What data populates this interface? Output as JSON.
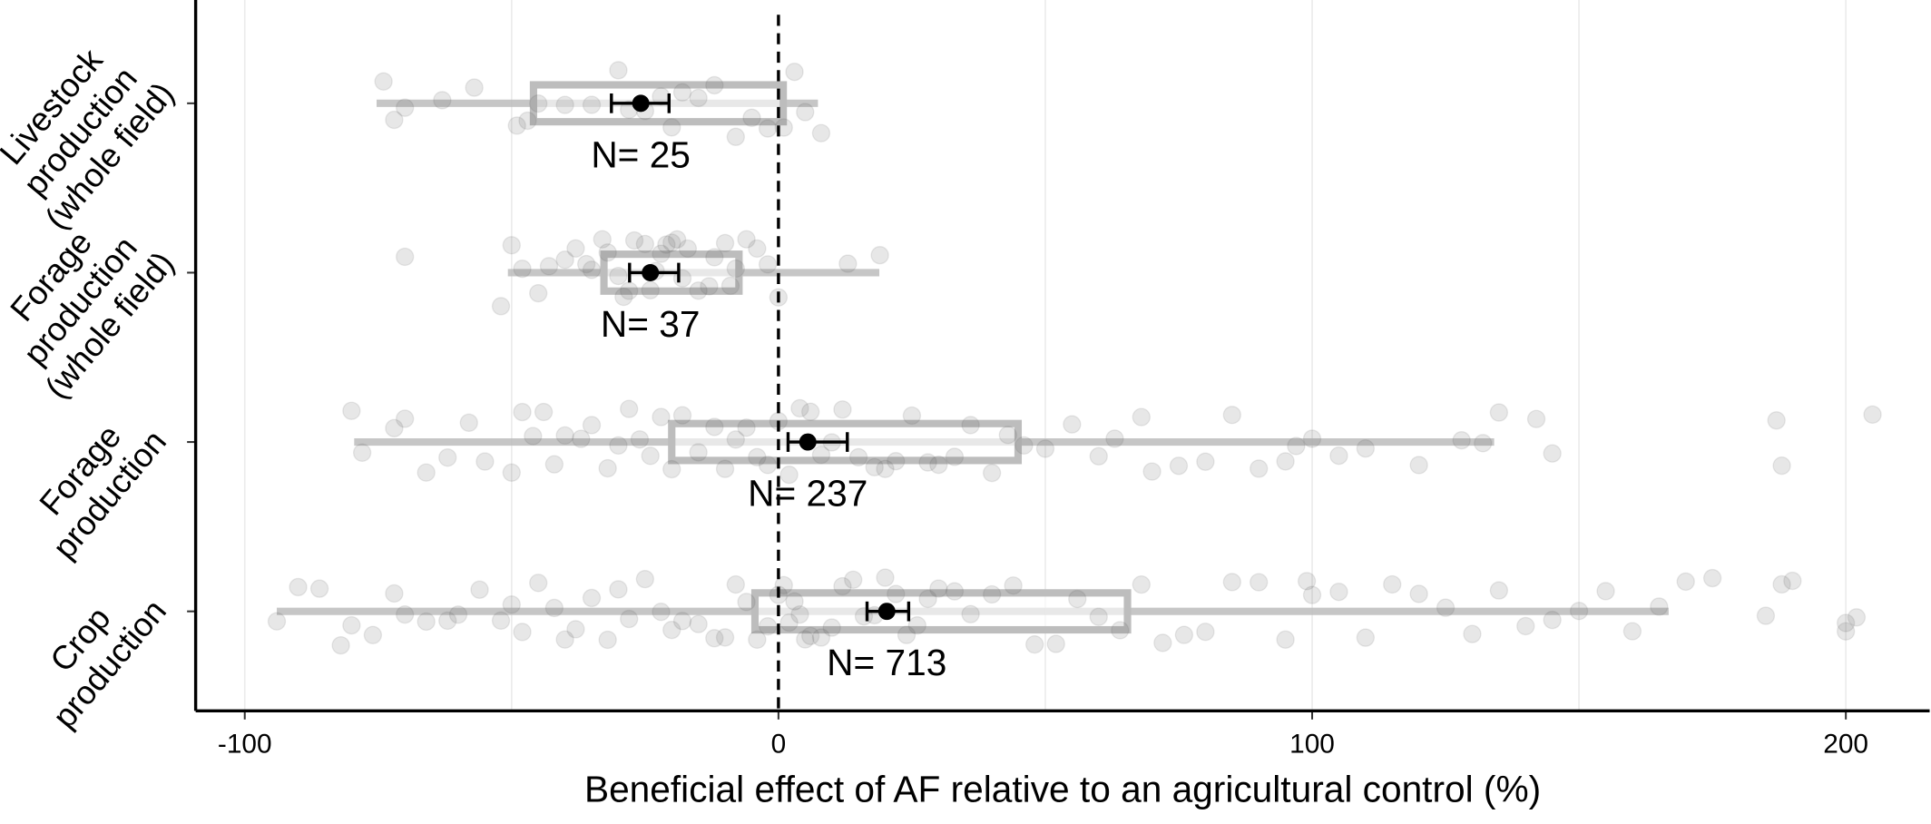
{
  "chart_data": {
    "type": "boxplot",
    "xlabel": "Beneficial effect of AF relative to an agricultural control (%)",
    "xlim": [
      -109.2,
      215.7
    ],
    "xticks": [
      -100,
      0,
      100,
      200
    ],
    "minor_grid": [
      -50,
      50,
      150
    ],
    "reference_line": 0,
    "box_color": "#bdbdbd",
    "point_color": "#555555",
    "mean_color": "#000000",
    "categories": [
      [
        "Livestock",
        "production",
        "(whole field)"
      ],
      [
        "Forage",
        "production",
        "(whole field)"
      ],
      [
        "Forage",
        "production"
      ],
      [
        "Crop",
        "production"
      ]
    ],
    "boxes": [
      {
        "whisker": [
          -75.3,
          7.4
        ],
        "box": [
          -45.9,
          0.9
        ],
        "mean": -25.8,
        "mean_ci": [
          -31.3,
          -20.5
        ],
        "label": "N= 25",
        "points": [
          -74,
          -72,
          -70,
          -63,
          -57,
          -49,
          -47,
          -45,
          -40,
          -35,
          -30,
          -28,
          -25,
          -22,
          -20,
          -18,
          -15,
          -12,
          -8,
          -5,
          -2,
          1,
          3,
          5,
          8
        ]
      },
      {
        "whisker": [
          -50.7,
          18.9
        ],
        "box": [
          -32.7,
          -7.4
        ],
        "mean": -24,
        "mean_ci": [
          -27.9,
          -18.7
        ],
        "label": "N= 37",
        "points": [
          -70,
          -52,
          -50,
          -48,
          -45,
          -43,
          -40,
          -38,
          -36,
          -35,
          -33,
          -32,
          -30,
          -29,
          -28,
          -27,
          -25,
          -24,
          -23,
          -22,
          -21,
          -20,
          -19,
          -18,
          -17,
          -15,
          -13,
          -12,
          -10,
          -9,
          -8,
          -6,
          -4,
          -2,
          0,
          13,
          19
        ]
      },
      {
        "whisker": [
          -79.5,
          134.1
        ],
        "box": [
          -20,
          44.9
        ],
        "mean": 5.5,
        "mean_ci": [
          1.8,
          12.9
        ],
        "label": "N= 237",
        "points": [
          -80,
          -78,
          -72,
          -70,
          -66,
          -62,
          -58,
          -55,
          -50,
          -48,
          -46,
          -44,
          -42,
          -40,
          -37,
          -35,
          -32,
          -30,
          -28,
          -26,
          -24,
          -22,
          -20,
          -18,
          -15,
          -12,
          -10,
          -8,
          -6,
          -4,
          -2,
          0,
          2,
          4,
          6,
          8,
          10,
          12,
          15,
          18,
          20,
          22,
          25,
          28,
          30,
          33,
          36,
          40,
          43,
          46,
          50,
          55,
          60,
          63,
          68,
          70,
          75,
          80,
          85,
          90,
          95,
          97,
          100,
          105,
          110,
          120,
          128,
          132,
          135,
          142,
          145,
          187,
          188,
          205
        ]
      },
      {
        "whisker": [
          -94,
          166.8
        ],
        "box": [
          -4.4,
          65.4
        ],
        "mean": 20.3,
        "mean_ci": [
          16.6,
          24.4
        ],
        "label": "N= 713",
        "points": [
          -94,
          -90,
          -86,
          -82,
          -80,
          -76,
          -72,
          -70,
          -66,
          -62,
          -60,
          -56,
          -52,
          -50,
          -48,
          -45,
          -42,
          -40,
          -38,
          -35,
          -32,
          -30,
          -28,
          -25,
          -22,
          -20,
          -18,
          -15,
          -12,
          -10,
          -8,
          -6,
          -4,
          -2,
          0,
          1,
          2,
          3,
          4,
          5,
          6,
          8,
          10,
          12,
          14,
          16,
          18,
          20,
          22,
          24,
          26,
          28,
          30,
          33,
          36,
          40,
          44,
          48,
          52,
          56,
          60,
          64,
          68,
          72,
          76,
          80,
          85,
          90,
          95,
          99,
          100,
          105,
          110,
          115,
          120,
          125,
          130,
          135,
          140,
          145,
          150,
          155,
          160,
          165,
          170,
          175,
          185,
          188,
          190,
          200,
          200,
          202
        ]
      }
    ]
  }
}
